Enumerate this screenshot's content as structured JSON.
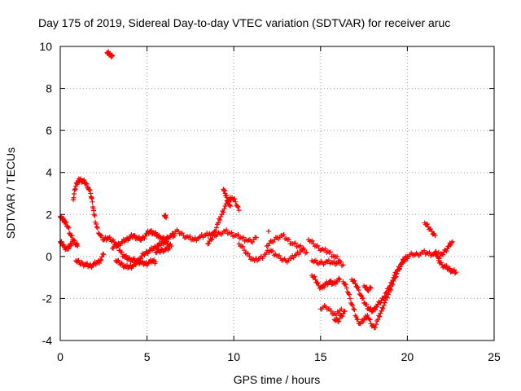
{
  "chart_data": {
    "type": "scatter",
    "title": "Day 175 of 2019, Sidereal Day-to-day VTEC variation (SDTVAR) for receiver aruc",
    "xlabel": "GPS time / hours",
    "ylabel": "SDTVAR / TECUs",
    "xlim": [
      0,
      25
    ],
    "ylim": [
      -4,
      10
    ],
    "xticks": [
      "0",
      "5",
      "10",
      "15",
      "20",
      "25"
    ],
    "yticks": [
      "-4",
      "-2",
      "0",
      "2",
      "4",
      "6",
      "8",
      "10"
    ],
    "grid": true,
    "marker": "+",
    "color": "#ff0000",
    "series": [
      {
        "name": "SDTVAR",
        "traces": [
          {
            "x": [
              0.0,
              0.1,
              0.2,
              0.3,
              0.45,
              0.6,
              0.75,
              0.9,
              1.0
            ],
            "y": [
              1.9,
              1.8,
              1.75,
              1.6,
              1.4,
              1.0,
              0.8,
              0.6,
              0.5
            ]
          },
          {
            "x": [
              0.0,
              0.1,
              0.25,
              0.4,
              0.55,
              0.7
            ],
            "y": [
              0.7,
              0.6,
              0.45,
              0.35,
              0.5,
              0.7
            ]
          },
          {
            "x": [
              0.75,
              0.85,
              0.95,
              1.05,
              1.15,
              1.3,
              1.45,
              1.6,
              1.75,
              1.85,
              1.95,
              2.1,
              2.3,
              2.5,
              2.7,
              2.9,
              3.1,
              3.3,
              3.5,
              3.7,
              3.9,
              4.1,
              4.3,
              4.5,
              4.7,
              4.9,
              5.1,
              5.3,
              5.5
            ],
            "y": [
              2.7,
              3.2,
              3.5,
              3.6,
              3.65,
              3.6,
              3.5,
              3.3,
              3.0,
              2.6,
              2.0,
              1.4,
              1.0,
              0.8,
              0.9,
              0.8,
              0.7,
              0.5,
              0.2,
              0.0,
              -0.1,
              -0.15,
              -0.2,
              -0.25,
              -0.3,
              -0.35,
              -0.3,
              -0.2,
              -0.25
            ]
          },
          {
            "x": [
              0.9,
              1.1,
              1.3,
              1.5,
              1.7,
              1.9,
              2.1,
              2.3,
              2.5
            ],
            "y": [
              -0.2,
              -0.3,
              -0.35,
              -0.4,
              -0.45,
              -0.4,
              -0.3,
              -0.2,
              0.1
            ]
          },
          {
            "x": [
              2.7,
              2.8,
              2.9,
              3.0
            ],
            "y": [
              9.7,
              9.65,
              9.6,
              9.55
            ]
          },
          {
            "x": [
              3.0,
              3.2,
              3.4,
              3.6,
              3.8,
              4.0,
              4.2,
              4.4,
              4.6,
              4.8,
              5.0,
              5.2,
              5.4,
              5.6,
              5.8,
              6.0,
              6.2,
              6.4,
              6.6
            ],
            "y": [
              0.4,
              0.5,
              0.6,
              0.7,
              0.8,
              0.9,
              1.0,
              0.9,
              0.8,
              0.9,
              1.1,
              1.2,
              1.1,
              1.0,
              0.9,
              0.8,
              0.9,
              1.0,
              1.0
            ]
          },
          {
            "x": [
              3.2,
              3.4,
              3.6,
              3.8,
              4.0,
              4.2,
              4.4,
              4.6,
              4.8,
              5.0,
              5.2,
              5.4,
              5.6,
              5.8,
              6.0,
              6.2,
              6.4
            ],
            "y": [
              -0.2,
              -0.3,
              -0.4,
              -0.5,
              -0.5,
              -0.45,
              -0.3,
              -0.1,
              0.1,
              0.2,
              0.3,
              0.4,
              0.5,
              0.6,
              0.7,
              0.6,
              0.5
            ]
          },
          {
            "x": [
              5.5,
              5.7,
              5.9,
              6.1,
              6.3
            ],
            "y": [
              0.2,
              0.25,
              0.3,
              0.35,
              0.4
            ]
          },
          {
            "x": [
              6.0,
              6.1
            ],
            "y": [
              1.95,
              1.85
            ]
          },
          {
            "x": [
              6.5,
              6.8,
              7.1,
              7.4,
              7.7,
              8.0,
              8.3,
              8.6,
              8.9,
              9.2,
              9.5,
              9.8,
              10.1,
              10.4,
              10.7,
              11.0,
              11.3
            ],
            "y": [
              1.1,
              1.2,
              1.0,
              0.9,
              0.8,
              0.9,
              1.0,
              1.1,
              1.0,
              1.1,
              1.2,
              1.1,
              1.0,
              0.9,
              0.8,
              0.7,
              0.9
            ]
          },
          {
            "x": [
              8.5,
              8.7,
              8.9,
              9.1,
              9.3,
              9.5,
              9.7,
              9.9,
              10.1,
              10.3
            ],
            "y": [
              0.6,
              0.8,
              1.2,
              1.6,
              2.0,
              2.4,
              2.7,
              2.8,
              2.6,
              2.2
            ]
          },
          {
            "x": [
              9.4,
              9.5,
              9.6,
              9.7,
              9.8
            ],
            "y": [
              3.2,
              3.0,
              2.8,
              2.6,
              2.4
            ]
          },
          {
            "x": [
              10.3,
              10.6,
              10.9,
              11.2,
              11.5,
              11.8,
              12.1,
              12.4,
              12.7,
              13.0,
              13.3,
              13.6,
              13.9,
              14.2
            ],
            "y": [
              0.6,
              0.3,
              0.0,
              -0.2,
              -0.1,
              0.1,
              0.3,
              0.1,
              -0.1,
              -0.2,
              -0.1,
              0.1,
              0.3,
              0.2
            ]
          },
          {
            "x": [
              11.9,
              12.2,
              12.5,
              12.8,
              13.1,
              13.4,
              13.7,
              14.0
            ],
            "y": [
              0.5,
              0.7,
              0.9,
              1.0,
              0.8,
              0.6,
              0.5,
              0.4
            ]
          },
          {
            "x": [
              12.0
            ],
            "y": [
              1.2
            ]
          },
          {
            "x": [
              14.3,
              14.6,
              14.9,
              15.2,
              15.5,
              15.8,
              16.1
            ],
            "y": [
              0.8,
              0.6,
              0.4,
              0.3,
              0.2,
              0.0,
              -0.2
            ]
          },
          {
            "x": [
              14.5,
              14.8,
              15.1,
              15.4,
              15.7,
              16.0,
              16.3
            ],
            "y": [
              -0.2,
              -0.3,
              -0.3,
              -0.25,
              -0.3,
              -0.3,
              -0.4
            ]
          },
          {
            "x": [
              14.5,
              14.7,
              14.9,
              15.1,
              15.3,
              15.5,
              15.7,
              15.9,
              16.1
            ],
            "y": [
              -0.9,
              -1.1,
              -1.4,
              -1.5,
              -1.3,
              -1.2,
              -1.3,
              -1.2,
              -1.1
            ]
          },
          {
            "x": [
              15.0,
              15.3,
              15.6,
              15.9,
              16.2
            ],
            "y": [
              -2.5,
              -2.4,
              -2.6,
              -2.8,
              -2.5
            ]
          },
          {
            "x": [
              16.3,
              16.5,
              16.7,
              16.9,
              17.1,
              17.3,
              17.5,
              17.7,
              17.9,
              18.1,
              18.3,
              18.5,
              18.7,
              18.9,
              19.1,
              19.3,
              19.5,
              19.7,
              19.9
            ],
            "y": [
              -1.2,
              -1.5,
              -2.0,
              -2.5,
              -3.0,
              -3.2,
              -3.0,
              -2.8,
              -3.2,
              -3.4,
              -3.0,
              -2.6,
              -2.2,
              -1.8,
              -1.4,
              -1.0,
              -0.6,
              -0.3,
              0.0
            ]
          },
          {
            "x": [
              16.8,
              17.0,
              17.2,
              17.4,
              17.6,
              17.8,
              18.0,
              18.2,
              18.4,
              18.6,
              18.8,
              19.0,
              19.2,
              19.4,
              19.6,
              19.8,
              20.0
            ],
            "y": [
              -1.1,
              -1.3,
              -1.6,
              -2.0,
              -2.3,
              -2.5,
              -2.6,
              -2.4,
              -2.2,
              -2.0,
              -1.7,
              -1.4,
              -1.0,
              -0.7,
              -0.4,
              -0.2,
              -0.1
            ]
          },
          {
            "x": [
              15.8,
              16.0,
              16.2,
              16.4
            ],
            "y": [
              -3.0,
              -3.1,
              -2.8,
              -2.6
            ]
          },
          {
            "x": [
              17.5,
              17.7,
              17.9
            ],
            "y": [
              -1.4,
              -1.6,
              -1.5
            ]
          },
          {
            "x": [
              20.0,
              20.3,
              20.6,
              20.9,
              21.2,
              21.5,
              21.8
            ],
            "y": [
              0.0,
              0.1,
              0.1,
              0.2,
              0.15,
              0.1,
              0.2
            ]
          },
          {
            "x": [
              21.0,
              21.2,
              21.4,
              21.6
            ],
            "y": [
              1.6,
              1.4,
              1.2,
              1.0
            ]
          },
          {
            "x": [
              21.6,
              21.8,
              22.0,
              22.2,
              22.4,
              22.6,
              22.8
            ],
            "y": [
              0.2,
              -0.2,
              -0.4,
              -0.5,
              -0.6,
              -0.7,
              -0.75
            ]
          },
          {
            "x": [
              21.8,
              22.0,
              22.2,
              22.4,
              22.6
            ],
            "y": [
              -0.1,
              0.1,
              0.3,
              0.5,
              0.7
            ]
          }
        ]
      }
    ]
  }
}
